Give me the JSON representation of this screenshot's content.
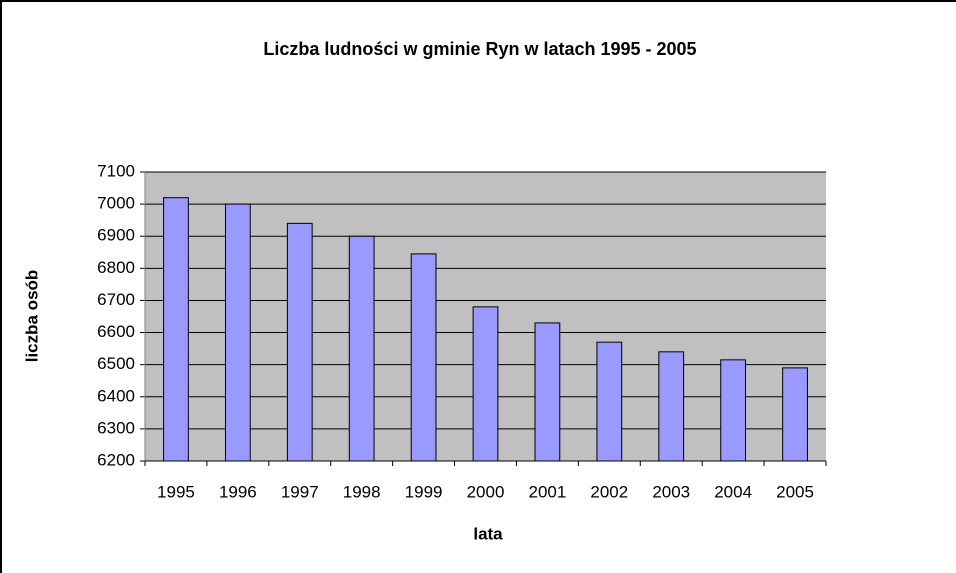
{
  "chart_data": {
    "type": "bar",
    "title": "Liczba ludności w gminie Ryn w latach 1995 - 2005",
    "x_label": "lata",
    "y_label": "liczba osób",
    "categories": [
      "1995",
      "1996",
      "1997",
      "1998",
      "1999",
      "2000",
      "2001",
      "2002",
      "2003",
      "2004",
      "2005"
    ],
    "values": [
      7020,
      7000,
      6940,
      6900,
      6845,
      6680,
      6630,
      6570,
      6540,
      6515,
      6490
    ],
    "color": "#9999ff",
    "ylim": [
      6200,
      7100
    ],
    "yticks": [
      6200,
      6300,
      6400,
      6500,
      6600,
      6700,
      6800,
      6900,
      7000,
      7100
    ],
    "grid": true
  }
}
